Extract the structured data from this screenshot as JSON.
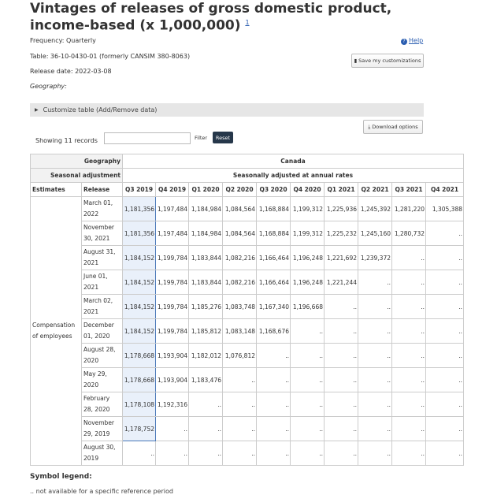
{
  "header": {
    "title": "Vintages of releases of gross domestic product, income-based (x 1,000,000)",
    "footnote": "1",
    "help": "Help"
  },
  "meta": {
    "frequency": "Frequency: Quarterly",
    "table": "Table: 36-10-0430-01 (formerly CANSIM 380-8063)",
    "release_date": "Release date: 2022-03-08",
    "geography": "Geography:"
  },
  "controls": {
    "save": "Save my customizations",
    "customize": "Customize table (Add/Remove data)",
    "download": "Download options",
    "records": "Showing 11 records",
    "filter": "Filter",
    "reset": "Reset"
  },
  "table": {
    "geography_label": "Geography",
    "geography": "Canada",
    "adjustment_label": "Seasonal adjustment",
    "adjustment": "Seasonally adjusted at annual rates",
    "columns": [
      "Estimates",
      "Release",
      "Q3 2019",
      "Q4 2019",
      "Q1 2020",
      "Q2 2020",
      "Q3 2020",
      "Q4 2020",
      "Q1 2021",
      "Q2 2021",
      "Q3 2021",
      "Q4 2021"
    ],
    "estimate": "Compensation of employees",
    "rows": [
      [
        "March 01, 2022",
        "1,181,356",
        "1,197,484",
        "1,184,984",
        "1,084,564",
        "1,168,884",
        "1,199,312",
        "1,225,936",
        "1,245,392",
        "1,281,220",
        "1,305,388"
      ],
      [
        "November 30, 2021",
        "1,181,356",
        "1,197,484",
        "1,184,984",
        "1,084,564",
        "1,168,884",
        "1,199,312",
        "1,225,232",
        "1,245,160",
        "1,280,732",
        ".."
      ],
      [
        "August 31, 2021",
        "1,184,152",
        "1,199,784",
        "1,183,844",
        "1,082,216",
        "1,166,464",
        "1,196,248",
        "1,221,692",
        "1,239,372",
        "..",
        ".."
      ],
      [
        "June 01, 2021",
        "1,184,152",
        "1,199,784",
        "1,183,844",
        "1,082,216",
        "1,166,464",
        "1,196,248",
        "1,221,244",
        "..",
        "..",
        ".."
      ],
      [
        "March 02, 2021",
        "1,184,152",
        "1,199,784",
        "1,185,276",
        "1,083,748",
        "1,167,340",
        "1,196,668",
        "..",
        "..",
        "..",
        ".."
      ],
      [
        "December 01, 2020",
        "1,184,152",
        "1,199,784",
        "1,185,812",
        "1,083,148",
        "1,168,676",
        "..",
        "..",
        "..",
        "..",
        ".."
      ],
      [
        "August 28, 2020",
        "1,178,668",
        "1,193,904",
        "1,182,012",
        "1,076,812",
        "..",
        "..",
        "..",
        "..",
        "..",
        ".."
      ],
      [
        "May 29, 2020",
        "1,178,668",
        "1,193,904",
        "1,183,476",
        "..",
        "..",
        "..",
        "..",
        "..",
        "..",
        ".."
      ],
      [
        "February 28, 2020",
        "1,178,108",
        "1,192,316",
        "..",
        "..",
        "..",
        "..",
        "..",
        "..",
        "..",
        ".."
      ],
      [
        "November 29, 2019",
        "1,178,752",
        "..",
        "..",
        "..",
        "..",
        "..",
        "..",
        "..",
        "..",
        ".."
      ],
      [
        "August 30, 2019",
        "..",
        "..",
        "..",
        "..",
        "..",
        "..",
        "..",
        "..",
        "..",
        ".."
      ]
    ]
  },
  "legend": {
    "title": "Symbol legend:",
    "symbol": "..",
    "description": "not available for a specific reference period"
  }
}
